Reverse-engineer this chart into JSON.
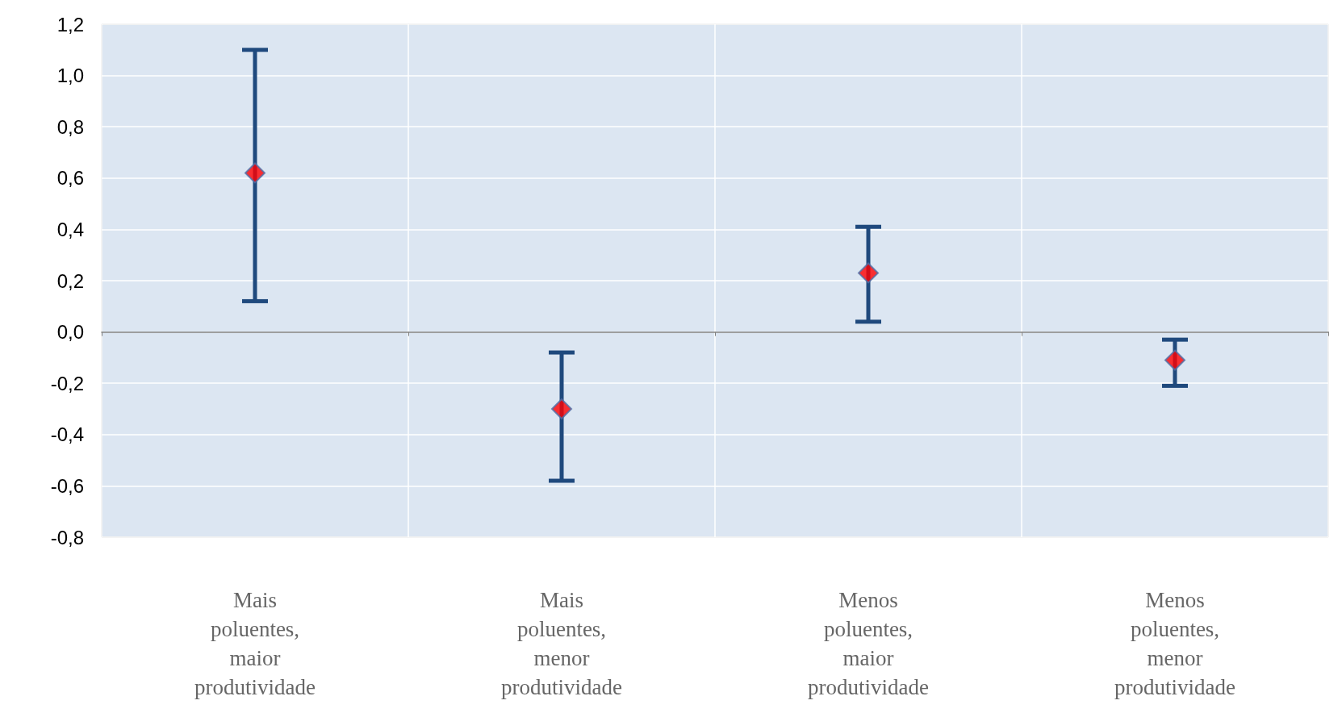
{
  "chart_data": {
    "type": "scatter",
    "categories": [
      "Mais poluentes, maior produtividade",
      "Mais poluentes, menor produtividade",
      "Menos poluentes, maior produtividade",
      "Menos poluentes, menor produtividade"
    ],
    "series": [
      {
        "color": "#ff0000",
        "values": [
          0.62,
          -0.3,
          0.23,
          -0.11
        ],
        "errors": [
          [
            0.12,
            1.1
          ],
          [
            -0.58,
            -0.08
          ],
          [
            0.04,
            0.41
          ],
          [
            -0.21,
            -0.03
          ]
        ]
      }
    ],
    "ylim": [
      -0.8,
      1.2
    ],
    "yticks": [
      {
        "value": -0.8,
        "label": "-0,8"
      },
      {
        "value": -0.6,
        "label": "-0,6"
      },
      {
        "value": -0.4,
        "label": "-0,4"
      },
      {
        "value": -0.2,
        "label": "-0,2"
      },
      {
        "value": 0,
        "label": "0,0"
      },
      {
        "value": 0.2,
        "label": "0,2"
      },
      {
        "value": 0.4,
        "label": "0,4"
      },
      {
        "value": 0.6,
        "label": "0,6"
      },
      {
        "value": 0.8,
        "label": "0,8"
      },
      {
        "value": 1.0,
        "label": "1,0"
      },
      {
        "value": 1.2,
        "label": "1,2"
      }
    ],
    "grid": true,
    "marker": "diamond"
  }
}
